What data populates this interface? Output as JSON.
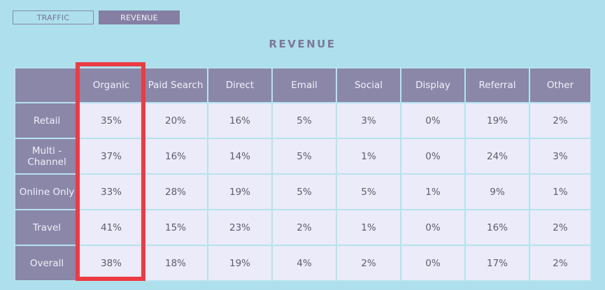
{
  "tabs": {
    "traffic_label": "TRAFFIC",
    "revenue_label": "REVENUE"
  },
  "chart_data": {
    "type": "table",
    "title": "REVENUE",
    "columns": [
      "Organic",
      "Paid Search",
      "Direct",
      "Email",
      "Social",
      "Display",
      "Referral",
      "Other"
    ],
    "rows": [
      {
        "label": "Retail",
        "values": [
          "35%",
          "20%",
          "16%",
          "5%",
          "3%",
          "0%",
          "19%",
          "2%"
        ]
      },
      {
        "label": "Multi -\nChannel",
        "values": [
          "37%",
          "16%",
          "14%",
          "5%",
          "1%",
          "0%",
          "24%",
          "3%"
        ]
      },
      {
        "label": "Online Only",
        "values": [
          "33%",
          "28%",
          "19%",
          "5%",
          "5%",
          "1%",
          "9%",
          "1%"
        ]
      },
      {
        "label": "Travel",
        "values": [
          "41%",
          "15%",
          "23%",
          "2%",
          "1%",
          "0%",
          "16%",
          "2%"
        ]
      },
      {
        "label": "Overall",
        "values": [
          "38%",
          "18%",
          "19%",
          "4%",
          "2%",
          "0%",
          "17%",
          "2%"
        ]
      }
    ],
    "highlighted_column": "Organic"
  },
  "colors": {
    "background": "#ade0ec",
    "header": "#8a87a9",
    "cell": "#ebebf9",
    "highlight": "#ec3b43"
  }
}
